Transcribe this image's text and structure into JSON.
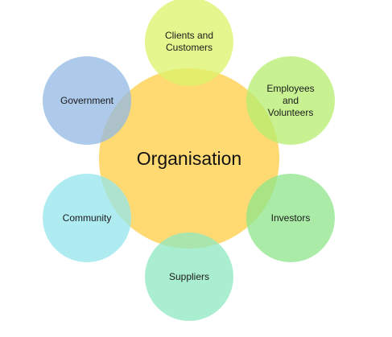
{
  "center": {
    "label": "Organisation",
    "color": "#FFD35A"
  },
  "stakeholders": [
    {
      "id": "clients-and-customers",
      "label": "Clients and\nCustomers",
      "color": "#DCF36A"
    },
    {
      "id": "employees-and-volunteers",
      "label": "Employees\nand\nVolunteers",
      "color": "#B5EE6E"
    },
    {
      "id": "investors",
      "label": "Investors",
      "color": "#8EE58A"
    },
    {
      "id": "suppliers",
      "label": "Suppliers",
      "color": "#8EE8C2"
    },
    {
      "id": "community",
      "label": "Community",
      "color": "#93E6EC"
    },
    {
      "id": "government",
      "label": "Government",
      "color": "#92B8E4"
    }
  ]
}
